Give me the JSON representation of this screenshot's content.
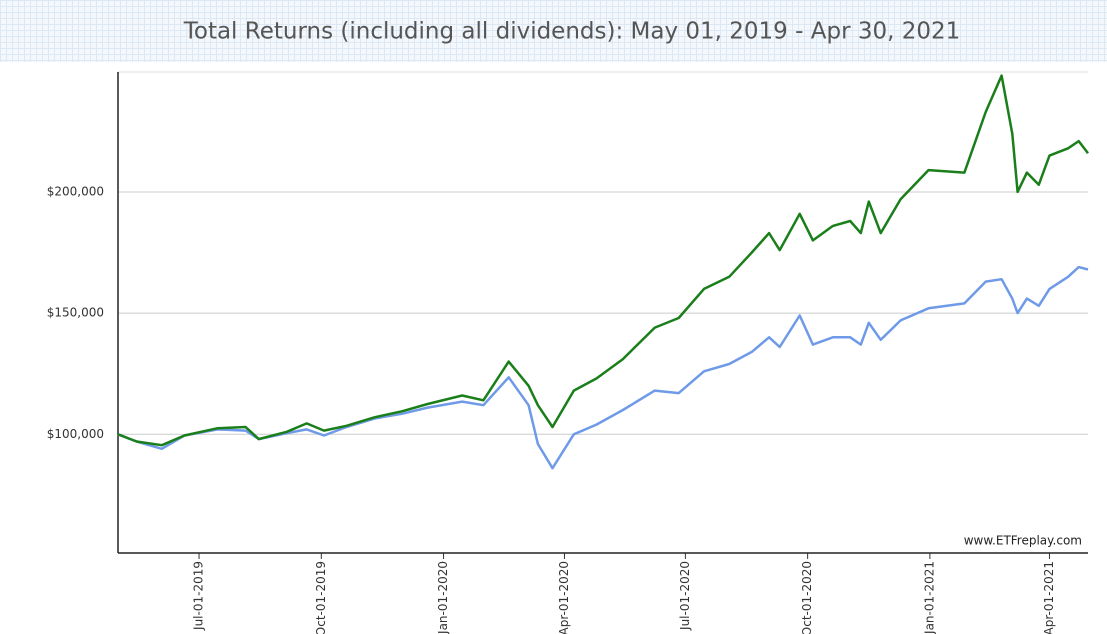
{
  "chart_data": {
    "type": "line",
    "title": "Total Returns (including all dividends): May 01, 2019 - Apr 30, 2021",
    "annotations": [
      "www.ETFreplay.com"
    ],
    "x": [
      "2019-05-01",
      "2019-05-15",
      "2019-06-03",
      "2019-06-20",
      "2019-07-15",
      "2019-08-05",
      "2019-08-15",
      "2019-09-05",
      "2019-09-20",
      "2019-10-03",
      "2019-10-20",
      "2019-11-10",
      "2019-12-01",
      "2019-12-20",
      "2020-01-15",
      "2020-01-31",
      "2020-02-19",
      "2020-03-05",
      "2020-03-12",
      "2020-03-23",
      "2020-04-08",
      "2020-04-25",
      "2020-05-15",
      "2020-06-08",
      "2020-06-26",
      "2020-07-15",
      "2020-08-03",
      "2020-08-20",
      "2020-09-02",
      "2020-09-10",
      "2020-09-25",
      "2020-10-05",
      "2020-10-20",
      "2020-11-02",
      "2020-11-10",
      "2020-11-16",
      "2020-11-25",
      "2020-12-10",
      "2020-12-31",
      "2021-01-27",
      "2021-02-12",
      "2021-02-24",
      "2021-03-04",
      "2021-03-08",
      "2021-03-15",
      "2021-03-24",
      "2021-04-01",
      "2021-04-15",
      "2021-04-23",
      "2021-04-30"
    ],
    "series": [
      {
        "color": "#1a7f1a",
        "values": [
          100000,
          97000,
          95500,
          99500,
          102500,
          103000,
          98000,
          101000,
          104500,
          101500,
          103500,
          107000,
          109500,
          112500,
          116000,
          114000,
          130000,
          120000,
          112000,
          103000,
          118000,
          123000,
          131000,
          144000,
          148000,
          160000,
          165000,
          175000,
          183000,
          176000,
          191000,
          180000,
          186000,
          188000,
          183000,
          196000,
          183000,
          197000,
          209000,
          208000,
          233000,
          248000,
          224000,
          200000,
          208000,
          203000,
          215000,
          218000,
          221000,
          216000
        ]
      },
      {
        "color": "#6f9ae8",
        "values": [
          100000,
          97000,
          94000,
          99500,
          102000,
          101500,
          98000,
          100500,
          102000,
          99500,
          103000,
          106500,
          108500,
          111000,
          113500,
          112000,
          123500,
          112000,
          96000,
          86000,
          100000,
          104000,
          110000,
          118000,
          117000,
          126000,
          129000,
          134000,
          140000,
          136000,
          149000,
          137000,
          140000,
          140000,
          137000,
          146000,
          139000,
          147000,
          152000,
          154000,
          163000,
          164000,
          156000,
          150000,
          156000,
          153000,
          160000,
          165000,
          169000,
          168000
        ]
      }
    ],
    "xlim": [
      "2019-05-01",
      "2021-04-30"
    ],
    "xticks": [
      {
        "value": "2019-07-01",
        "label": "Jul-01-2019"
      },
      {
        "value": "2019-10-01",
        "label": "Oct-01-2019"
      },
      {
        "value": "2020-01-01",
        "label": "Jan-01-2020"
      },
      {
        "value": "2020-04-01",
        "label": "Apr-01-2020"
      },
      {
        "value": "2020-07-01",
        "label": "Jul-01-2020"
      },
      {
        "value": "2020-10-01",
        "label": "Oct-01-2020"
      },
      {
        "value": "2021-01-01",
        "label": "Jan-01-2021"
      },
      {
        "value": "2021-04-01",
        "label": "Apr-01-2021"
      }
    ],
    "ylim": [
      51000,
      249500
    ],
    "yticks": [
      {
        "value": 100000,
        "label": "$100,000"
      },
      {
        "value": 150000,
        "label": "$150,000"
      },
      {
        "value": 200000,
        "label": "$200,000"
      }
    ],
    "grid": true
  }
}
